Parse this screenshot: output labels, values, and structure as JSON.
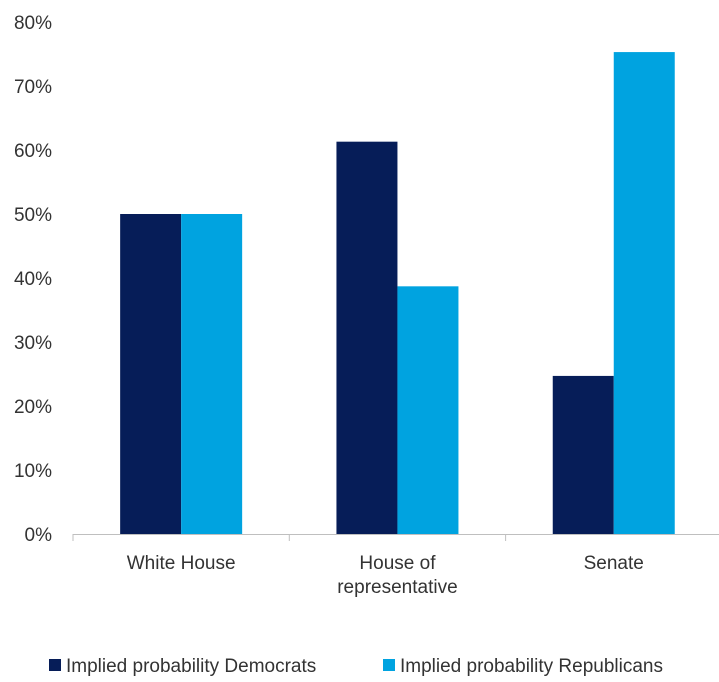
{
  "chart_data": {
    "type": "bar",
    "categories": [
      [
        "White House"
      ],
      [
        "House of",
        "representative"
      ],
      [
        "Senate"
      ]
    ],
    "series": [
      {
        "name": "Implied probability Democrats",
        "values": [
          50,
          61.3,
          24.7
        ],
        "color": "#061d58"
      },
      {
        "name": "Implied probability Republicans",
        "values": [
          50,
          38.7,
          75.3
        ],
        "color": "#00a3e0"
      }
    ],
    "ylim": [
      0,
      80
    ],
    "yticks": [
      0,
      10,
      20,
      30,
      40,
      50,
      60,
      70,
      80
    ],
    "ytick_format": "{v}%",
    "grid": false,
    "legend": "bottom",
    "title": "",
    "xlabel": "",
    "ylabel": ""
  }
}
